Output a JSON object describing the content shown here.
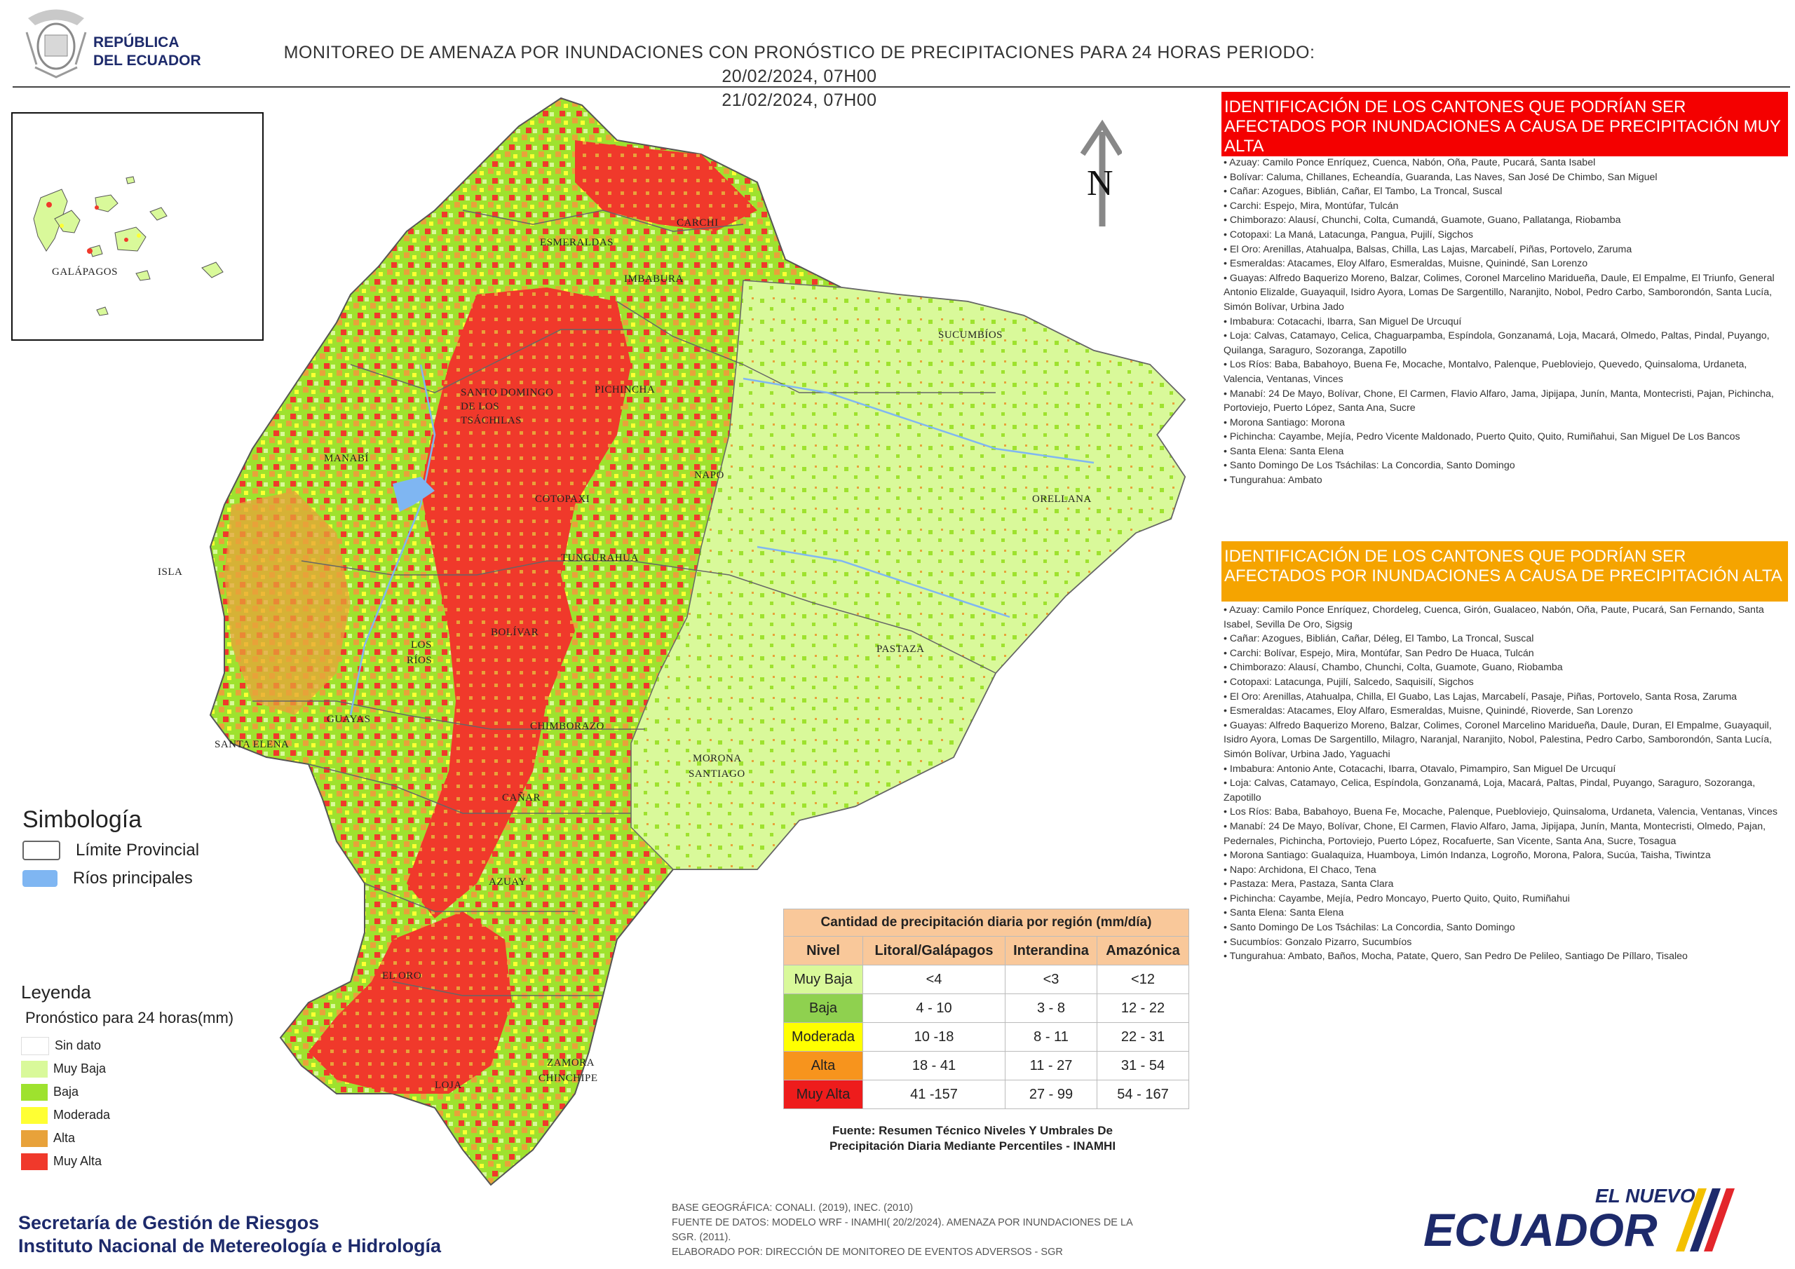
{
  "header": {
    "republic_line1": "REPÚBLICA",
    "republic_line2": "DEL ECUADOR",
    "title_line1": "MONITOREO DE AMENAZA POR INUNDACIONES  CON PRONÓSTICO DE  PRECIPITACIONES PARA 24 HORAS  PERIODO: 20/02/2024, 07H00",
    "title_line2": "21/02/2024, 07H00"
  },
  "north_label": "N",
  "galapagos_label": "GALÁPAGOS",
  "provinces": {
    "carchi": "CARCHI",
    "esmeraldas": "ESMERALDAS",
    "imbabura": "IMBABURA",
    "sucumbios": "SUCUMBÍOS",
    "santo_domingo_1": "SANTO DOMINGO",
    "santo_domingo_2": "DE LOS",
    "santo_domingo_3": "TSÁCHILAS",
    "pichincha": "PICHINCHA",
    "manabi": "MANABÍ",
    "napo": "NAPO",
    "orellana": "ORELLANA",
    "cotopaxi": "COTOPAXI",
    "tungurahua": "TUNGURAHUA",
    "isla": "ISLA",
    "bolivar": "BOLÍVAR",
    "los_rios_1": "LOS",
    "los_rios_2": "RÍOS",
    "pastaza": "PASTAZA",
    "guayas": "GUAYAS",
    "chimborazo": "CHIMBORAZO",
    "santa_elena": "SANTA ELENA",
    "morona_1": "MORONA",
    "morona_2": "SANTIAGO",
    "canar": "CAÑAR",
    "azuay": "AZUAY",
    "el_oro": "EL ORO",
    "zamora_1": "ZAMORA",
    "zamora_2": "CHINCHIPE",
    "loja": "LOJA"
  },
  "alerts": {
    "red_title": "IDENTIFICACIÓN DE LOS CANTONES QUE PODRÍAN SER AFECTADOS POR INUNDACIONES  A CAUSA DE PRECIPITACIÓN MUY ALTA",
    "red_items": [
      "Azuay: Camilo Ponce Enríquez, Cuenca, Nabón, Oña, Paute, Pucará, Santa Isabel",
      "Bolívar: Caluma, Chillanes, Echeandía, Guaranda, Las Naves, San José De Chimbo, San Miguel",
      "Cañar: Azogues, Biblián, Cañar, El Tambo, La Troncal, Suscal",
      "Carchi: Espejo, Mira, Montúfar, Tulcán",
      "Chimborazo: Alausí, Chunchi, Colta, Cumandá, Guamote, Guano, Pallatanga, Riobamba",
      "Cotopaxi: La Maná, Latacunga, Pangua, Pujilí, Sigchos",
      "El Oro: Arenillas, Atahualpa, Balsas, Chilla, Las Lajas, Marcabelí, Piñas, Portovelo, Zaruma",
      "Esmeraldas: Atacames, Eloy Alfaro, Esmeraldas, Muisne, Quinindé, San Lorenzo",
      "Guayas: Alfredo Baquerizo Moreno, Balzar, Colimes, Coronel Marcelino Maridueña, Daule, El Empalme, El Triunfo, General Antonio Elizalde, Guayaquil, Isidro Ayora, Lomas De Sargentillo, Naranjito, Nobol, Pedro Carbo, Samborondón, Santa Lucía, Simón Bolívar, Urbina Jado",
      "Imbabura: Cotacachi, Ibarra, San Miguel De Urcuquí",
      "Loja: Calvas, Catamayo, Celica, Chaguarpamba, Espíndola, Gonzanamá, Loja, Macará, Olmedo, Paltas, Pindal, Puyango, Quilanga, Saraguro, Sozoranga, Zapotillo",
      "Los Ríos: Baba, Babahoyo, Buena Fe, Mocache, Montalvo, Palenque, Puebloviejo, Quevedo, Quinsaloma, Urdaneta, Valencia, Ventanas, Vinces",
      "Manabí: 24 De Mayo, Bolívar, Chone, El Carmen, Flavio Alfaro, Jama, Jipijapa, Junín, Manta, Montecristi, Pajan, Pichincha, Portoviejo, Puerto López, Santa Ana, Sucre",
      "Morona Santiago: Morona",
      "Pichincha: Cayambe, Mejía, Pedro Vicente Maldonado, Puerto Quito, Quito, Rumiñahui, San Miguel De Los Bancos",
      "Santa Elena: Santa Elena",
      "Santo Domingo De Los Tsáchilas: La Concordia, Santo Domingo",
      "Tungurahua: Ambato"
    ],
    "orange_title": "IDENTIFICACIÓN DE LOS CANTONES QUE  PODRÍAN SER AFECTADOS POR INUNDACIONES  A CAUSA DE PRECIPITACIÓN  ALTA",
    "orange_items": [
      "Azuay: Camilo Ponce Enríquez, Chordeleg, Cuenca, Girón, Gualaceo, Nabón, Oña, Paute, Pucará, San Fernando, Santa Isabel, Sevilla De Oro, Sigsig",
      "Cañar: Azogues, Biblián, Cañar, Déleg, El Tambo, La Troncal, Suscal",
      "Carchi: Bolívar, Espejo, Mira, Montúfar, San Pedro De Huaca, Tulcán",
      "Chimborazo: Alausí, Chambo, Chunchi, Colta, Guamote, Guano, Riobamba",
      "Cotopaxi: Latacunga, Pujilí, Salcedo, Saquisilí, Sigchos",
      "El Oro: Arenillas, Atahualpa, Chilla, El Guabo, Las Lajas, Marcabelí, Pasaje, Piñas, Portovelo, Santa Rosa, Zaruma",
      "Esmeraldas: Atacames, Eloy Alfaro, Esmeraldas, Muisne, Quinindé, Rioverde, San Lorenzo",
      "Guayas: Alfredo Baquerizo Moreno, Balzar, Colimes, Coronel Marcelino Maridueña, Daule, Duran, El Empalme, Guayaquil, Isidro Ayora, Lomas De Sargentillo, Milagro, Naranjal, Naranjito, Nobol, Palestina, Pedro Carbo, Samborondón, Santa Lucía, Simón Bolívar, Urbina Jado, Yaguachi",
      "Imbabura: Antonio Ante, Cotacachi, Ibarra, Otavalo, Pimampiro, San Miguel De Urcuquí",
      "Loja: Calvas, Catamayo, Celica, Espíndola, Gonzanamá, Loja, Macará, Paltas, Pindal, Puyango, Saraguro, Sozoranga, Zapotillo",
      "Los Ríos: Baba, Babahoyo, Buena Fe, Mocache, Palenque, Puebloviejo, Quinsaloma, Urdaneta, Valencia, Ventanas, Vinces",
      "Manabí: 24 De Mayo, Bolívar, Chone, El Carmen, Flavio Alfaro, Jama, Jipijapa, Junín, Manta, Montecristi, Olmedo, Pajan, Pedernales, Pichincha, Portoviejo, Puerto López, Rocafuerte, San Vicente, Santa Ana, Sucre, Tosagua",
      "Morona Santiago: Gualaquiza, Huamboya, Limón Indanza, Logroño, Morona, Palora, Sucúa, Taisha, Tiwintza",
      "Napo: Archidona, El Chaco, Tena",
      "Pastaza: Mera, Pastaza, Santa Clara",
      "Pichincha: Cayambe, Mejía, Pedro Moncayo, Puerto Quito, Quito, Rumiñahui",
      "Santa Elena: Santa Elena",
      "Santo Domingo De Los Tsáchilas: La Concordia, Santo Domingo",
      "Sucumbíos: Gonzalo Pizarro, Sucumbíos",
      "Tungurahua: Ambato, Baños, Mocha, Patate, Quero, San Pedro De Pelileo, Santiago De Píllaro, Tisaleo"
    ]
  },
  "simbologia": {
    "title": "Simbología",
    "items": [
      {
        "label": "Límite Provincial",
        "color": "#ffffff"
      },
      {
        "label": "Ríos principales",
        "color": "#7fb6f2"
      }
    ]
  },
  "leyenda": {
    "title": "Leyenda",
    "subtitle": "Pronóstico para 24 horas(mm)",
    "items": [
      {
        "label": "Sin dato",
        "color": "#ffffff"
      },
      {
        "label": "Muy Baja",
        "color": "#d9f99a"
      },
      {
        "label": "Baja",
        "color": "#9ee22e"
      },
      {
        "label": "Moderada",
        "color": "#ffff33"
      },
      {
        "label": "Alta",
        "color": "#e8a23a"
      },
      {
        "label": "Muy Alta",
        "color": "#f0392b"
      }
    ]
  },
  "precip_table": {
    "title": "Cantidad de precipitación diaria por región (mm/día)",
    "headers": [
      "Nivel",
      "Litoral/Galápagos",
      "Interandina",
      "Amazónica"
    ],
    "rows": [
      {
        "nivel": "Muy Baja",
        "color": "#d9f99a",
        "values": [
          "<4",
          "<3",
          "<12"
        ]
      },
      {
        "nivel": "Baja",
        "color": "#8fd14f",
        "values": [
          "4 - 10",
          "3 - 8",
          "12 - 22"
        ]
      },
      {
        "nivel": "Moderada",
        "color": "#ffff00",
        "values": [
          "10 -18",
          "8 - 11",
          "22 - 31"
        ]
      },
      {
        "nivel": "Alta",
        "color": "#f7941d",
        "values": [
          "18 - 41",
          "11 - 27",
          "31 - 54"
        ]
      },
      {
        "nivel": "Muy Alta",
        "color": "#ee1c1c",
        "values": [
          "41 -157",
          "27 - 99",
          "54 - 167"
        ]
      }
    ],
    "source_line1": "Fuente: Resumen Técnico Niveles Y Umbrales De",
    "source_line2": "Precipitación Diaria Mediante Percentiles - INAMHI"
  },
  "footer": {
    "org1": "Secretaría de Gestión de Riesgos",
    "org2": "Instituto Nacional de Metereología e Hidrología",
    "credit1": "BASE GEOGRÁFICA: CONALI. (2019), INEC. (2010)",
    "credit2": "FUENTE DE DATOS: MODELO WRF - INAMHI( 20/2/2024).  AMENAZA POR INUNDACIONES DE LA",
    "credit3": "SGR. (2011).",
    "credit4": "ELABORADO POR: DIRECCIÓN DE MONITOREO DE EVENTOS ADVERSOS - SGR",
    "brand_small": "EL NUEVO",
    "brand_big": "ECUADOR"
  }
}
